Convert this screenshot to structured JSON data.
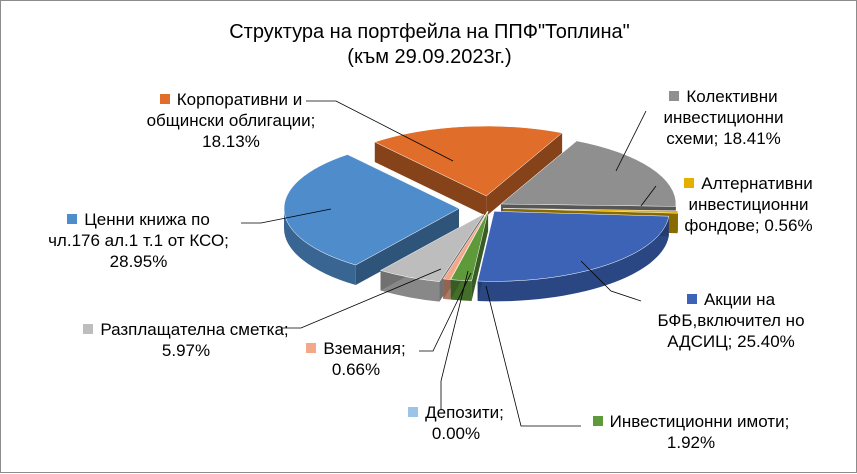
{
  "chart_data": {
    "type": "pie",
    "title": "Структура на портфейла на ППФ\"Топлина\"",
    "subtitle": "(към 29.09.2023г.)",
    "slices": [
      {
        "label": "Корпоративни и общински облигации;",
        "pct_text": "18.13%",
        "value": 18.13,
        "color": "#E06E2A"
      },
      {
        "label": "Колективни инвестиционни схеми;",
        "pct_text": "18.41%",
        "value": 18.41,
        "color": "#8F8F8F"
      },
      {
        "label": "Алтернативни инвестиционни фондове;",
        "pct_text": "0.56%",
        "value": 0.56,
        "color": "#E3B000"
      },
      {
        "label": "Акции на БФБ,включител но АДСИЦ;",
        "pct_text": "25.40%",
        "value": 25.4,
        "color": "#3C63B6"
      },
      {
        "label": "Инвестиционни имоти;",
        "pct_text": "1.92%",
        "value": 1.92,
        "color": "#5E9A3A"
      },
      {
        "label": "Депозити;",
        "pct_text": "0.00%",
        "value": 0.0,
        "color": "#9DC3E6"
      },
      {
        "label": "Вземания;",
        "pct_text": "0.66%",
        "value": 0.66,
        "color": "#F4A88A"
      },
      {
        "label": "Разплащателна сметка;",
        "pct_text": "5.97%",
        "value": 5.97,
        "color": "#BDBDBD"
      },
      {
        "label": "Ценни книжа по чл.176 ал.1 т.1 от КСО;",
        "pct_text": "28.95%",
        "value": 28.95,
        "color": "#4F8CCB"
      }
    ]
  }
}
